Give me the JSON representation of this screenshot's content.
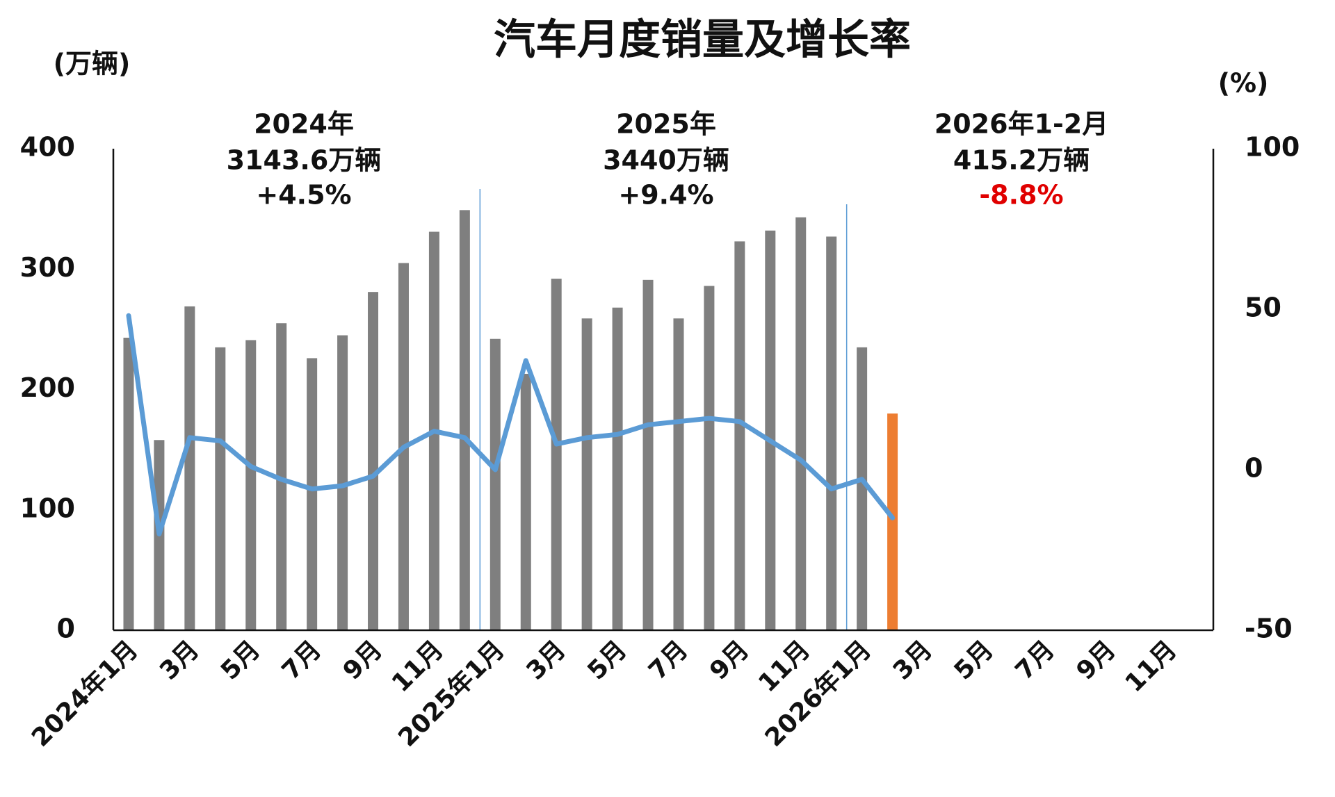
{
  "chart_data": {
    "type": "bar_line",
    "title": "汽车月度销量及增长率",
    "y_label": "(万辆)",
    "y2_label": "(%)",
    "categories": [
      "2024年1月",
      null,
      "3月",
      null,
      "5月",
      null,
      "7月",
      null,
      "9月",
      null,
      "11月",
      null,
      "2025年1月",
      null,
      "3月",
      null,
      "5月",
      null,
      "7月",
      null,
      "9月",
      null,
      "11月",
      null,
      "2026年1月",
      null,
      "3月",
      null,
      "5月",
      null,
      "7月",
      null,
      "9月",
      null,
      "11月",
      null
    ],
    "series": [
      {
        "type": "bar",
        "color": "#7f7f7f",
        "highlight_color": "#ed7d31",
        "highlight": [
          25
        ],
        "values": [
          243,
          158,
          269,
          235,
          241,
          255,
          226,
          245,
          281,
          305,
          331,
          349,
          242,
          213,
          292,
          259,
          268,
          291,
          259,
          286,
          323,
          332,
          343,
          327,
          235,
          180,
          null,
          null,
          null,
          null,
          null,
          null,
          null,
          null,
          null,
          null
        ]
      },
      {
        "type": "line",
        "axis": "y2",
        "color": "#5b9bd5",
        "values": [
          48,
          -20,
          10,
          9,
          1,
          -3,
          -6,
          -5,
          -2,
          7,
          12,
          10,
          0,
          34,
          8,
          10,
          11,
          14,
          15,
          16,
          15,
          9,
          3,
          -6,
          -3,
          -15,
          null,
          null,
          null,
          null,
          null,
          null,
          null,
          null,
          null,
          null
        ]
      }
    ],
    "ylim": [
      0,
      400
    ],
    "yticks": [
      0,
      100,
      200,
      300,
      400
    ],
    "y2lim": [
      -50,
      100
    ],
    "y2ticks": [
      -50,
      0,
      50,
      100
    ],
    "dividers": [
      12,
      24
    ],
    "annotations": [
      {
        "lines": [
          "2024年",
          "3143.6万辆",
          "+4.5%"
        ],
        "line_colors": [
          "#111111",
          "#111111",
          "#111111"
        ]
      },
      {
        "lines": [
          "2025年",
          "3440万辆",
          "+9.4%"
        ],
        "line_colors": [
          "#111111",
          "#111111",
          "#111111"
        ]
      },
      {
        "lines": [
          "2026年1-2月",
          "415.2万辆",
          "-8.8%"
        ],
        "line_colors": [
          "#111111",
          "#111111",
          "#e00000"
        ]
      }
    ]
  }
}
